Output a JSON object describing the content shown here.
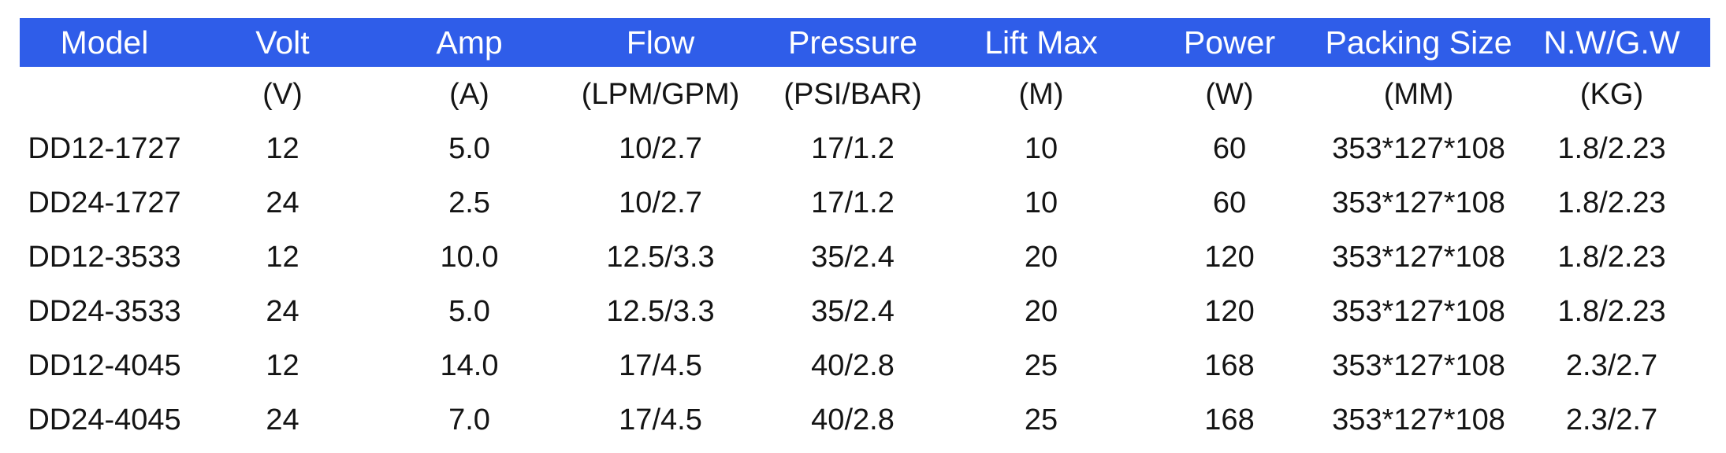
{
  "colors": {
    "header_background": "#2f5de9",
    "header_text": "#ffffff",
    "body_text": "#141414",
    "page_background": "#ffffff"
  },
  "table": {
    "columns": [
      {
        "key": "model",
        "label": "Model",
        "unit": ""
      },
      {
        "key": "volt",
        "label": "Volt",
        "unit": "(V)"
      },
      {
        "key": "amp",
        "label": "Amp",
        "unit": "(A)"
      },
      {
        "key": "flow",
        "label": "Flow",
        "unit": "(LPM/GPM)"
      },
      {
        "key": "pressure",
        "label": "Pressure",
        "unit": "(PSI/BAR)"
      },
      {
        "key": "lift-max",
        "label": "Lift Max",
        "unit": "(M)"
      },
      {
        "key": "power",
        "label": "Power",
        "unit": "(W)"
      },
      {
        "key": "packing-size",
        "label": "Packing Size",
        "unit": "(MM)"
      },
      {
        "key": "nw-gw",
        "label": "N.W/G.W",
        "unit": "(KG)"
      }
    ],
    "rows": [
      [
        "DD12-1727",
        "12",
        "5.0",
        "10/2.7",
        "17/1.2",
        "10",
        "60",
        "353*127*108",
        "1.8/2.23"
      ],
      [
        "DD24-1727",
        "24",
        "2.5",
        "10/2.7",
        "17/1.2",
        "10",
        "60",
        "353*127*108",
        "1.8/2.23"
      ],
      [
        "DD12-3533",
        "12",
        "10.0",
        "12.5/3.3",
        "35/2.4",
        "20",
        "120",
        "353*127*108",
        "1.8/2.23"
      ],
      [
        "DD24-3533",
        "24",
        "5.0",
        "12.5/3.3",
        "35/2.4",
        "20",
        "120",
        "353*127*108",
        "1.8/2.23"
      ],
      [
        "DD12-4045",
        "12",
        "14.0",
        "17/4.5",
        "40/2.8",
        "25",
        "168",
        "353*127*108",
        "2.3/2.7"
      ],
      [
        "DD24-4045",
        "24",
        "7.0",
        "17/4.5",
        "40/2.8",
        "25",
        "168",
        "353*127*108",
        "2.3/2.7"
      ]
    ]
  }
}
